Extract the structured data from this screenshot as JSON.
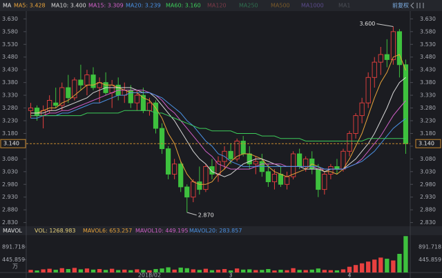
{
  "chart_data": {
    "type": "candlestick",
    "indicator": "MA",
    "adjustment": "前复权",
    "ma_legend": [
      {
        "label": "MA5: 3.428",
        "color": "#e8a33a"
      },
      {
        "label": "MA10: 3.400",
        "color": "#d8d8d8"
      },
      {
        "label": "MA15: 3.309",
        "color": "#d060c8"
      },
      {
        "label": "MA20: 3.239",
        "color": "#4a90e2"
      },
      {
        "label": "MA60: 3.160",
        "color": "#3dcc5a"
      },
      {
        "label": "MA120",
        "color": "#7a3a48"
      },
      {
        "label": "MA250",
        "color": "#2f6e4f"
      },
      {
        "label": "MA500",
        "color": "#7a5a2a"
      },
      {
        "label": "MA1000",
        "color": "#5a4a8a"
      },
      {
        "label": "MA1",
        "color": "#4a4d55"
      }
    ],
    "categories": [
      null,
      null,
      null,
      null,
      null,
      null,
      null,
      null,
      null,
      null,
      null,
      null,
      null,
      null,
      null,
      null,
      null,
      null,
      null,
      "2018/02",
      null,
      null,
      null,
      null,
      null,
      null,
      null,
      null,
      null,
      null,
      null,
      null,
      "3",
      null,
      null,
      null,
      null,
      null,
      null,
      null,
      null,
      null,
      null,
      null,
      null,
      null,
      null,
      null,
      null,
      null,
      null,
      "4",
      null,
      null,
      null,
      null,
      null,
      null,
      null,
      null,
      null
    ],
    "open": [
      3.27,
      3.28,
      3.25,
      3.27,
      3.3,
      3.29,
      3.36,
      3.32,
      3.39,
      3.37,
      3.41,
      3.36,
      3.38,
      3.34,
      3.37,
      3.33,
      3.35,
      3.3,
      3.33,
      3.27,
      3.3,
      3.2,
      3.12,
      3.02,
      3.06,
      2.97,
      2.93,
      2.99,
      2.96,
      3.05,
      3.02,
      3.07,
      3.11,
      3.08,
      3.15,
      3.1,
      3.06,
      3.07,
      3.03,
      2.99,
      3.02,
      2.98,
      3.01,
      3.1,
      3.05,
      3.08,
      3.04,
      2.96,
      3.02,
      3.05,
      3.04,
      3.11,
      3.18,
      3.25,
      3.3,
      3.4,
      3.46,
      3.49,
      3.47,
      3.58,
      3.45
    ],
    "high": [
      3.3,
      3.29,
      3.29,
      3.33,
      3.36,
      3.38,
      3.41,
      3.4,
      3.45,
      3.43,
      3.44,
      3.4,
      3.42,
      3.39,
      3.4,
      3.38,
      3.37,
      3.35,
      3.36,
      3.32,
      3.31,
      3.22,
      3.13,
      3.08,
      3.07,
      2.98,
      3.0,
      3.05,
      3.06,
      3.08,
      3.09,
      3.13,
      3.14,
      3.16,
      3.17,
      3.13,
      3.09,
      3.1,
      3.06,
      3.04,
      3.05,
      3.03,
      3.11,
      3.12,
      3.09,
      3.11,
      3.06,
      3.03,
      3.06,
      3.08,
      3.12,
      3.19,
      3.26,
      3.32,
      3.42,
      3.48,
      3.52,
      3.55,
      3.6,
      3.59,
      3.47
    ],
    "low": [
      3.24,
      3.23,
      3.2,
      3.26,
      3.28,
      3.27,
      3.3,
      3.31,
      3.35,
      3.33,
      3.35,
      3.3,
      3.33,
      3.28,
      3.31,
      3.3,
      3.28,
      3.27,
      3.26,
      3.25,
      3.18,
      3.1,
      3.0,
      3.0,
      2.95,
      2.87,
      2.91,
      2.94,
      2.95,
      3.0,
      2.99,
      3.04,
      3.06,
      3.07,
      3.09,
      3.04,
      3.02,
      3.01,
      2.97,
      2.96,
      2.97,
      2.96,
      3.0,
      3.04,
      3.03,
      3.02,
      2.93,
      2.94,
      3.0,
      3.02,
      3.03,
      3.09,
      3.16,
      3.22,
      3.28,
      3.36,
      3.41,
      3.44,
      3.45,
      3.4,
      3.1
    ],
    "close": [
      3.28,
      3.25,
      3.27,
      3.31,
      3.29,
      3.36,
      3.32,
      3.39,
      3.37,
      3.41,
      3.36,
      3.38,
      3.34,
      3.37,
      3.33,
      3.35,
      3.3,
      3.33,
      3.27,
      3.3,
      3.2,
      3.12,
      3.02,
      3.06,
      2.97,
      2.93,
      2.99,
      2.96,
      3.05,
      3.02,
      3.07,
      3.11,
      3.08,
      3.15,
      3.1,
      3.06,
      3.07,
      3.03,
      2.99,
      3.02,
      2.98,
      3.01,
      3.1,
      3.05,
      3.08,
      3.04,
      2.96,
      3.02,
      3.05,
      3.04,
      3.11,
      3.18,
      3.25,
      3.3,
      3.4,
      3.46,
      3.49,
      3.47,
      3.58,
      3.45,
      3.14
    ],
    "ma_series": [
      {
        "name": "MA5",
        "color": "#e8a33a",
        "values": [
          3.26,
          3.26,
          3.27,
          3.28,
          3.28,
          3.3,
          3.31,
          3.33,
          3.35,
          3.37,
          3.37,
          3.38,
          3.37,
          3.37,
          3.36,
          3.35,
          3.34,
          3.34,
          3.32,
          3.31,
          3.28,
          3.24,
          3.18,
          3.14,
          3.07,
          3.02,
          2.99,
          2.98,
          2.98,
          2.99,
          3.02,
          3.04,
          3.07,
          3.09,
          3.1,
          3.1,
          3.09,
          3.08,
          3.05,
          3.03,
          3.02,
          3.01,
          3.02,
          3.03,
          3.04,
          3.06,
          3.05,
          3.03,
          3.03,
          3.02,
          3.04,
          3.08,
          3.13,
          3.18,
          3.25,
          3.32,
          3.38,
          3.42,
          3.48,
          3.49,
          3.428
        ]
      },
      {
        "name": "MA10",
        "color": "#d8d8d8",
        "values": [
          3.26,
          3.26,
          3.26,
          3.27,
          3.27,
          3.28,
          3.29,
          3.3,
          3.31,
          3.32,
          3.34,
          3.35,
          3.36,
          3.36,
          3.36,
          3.36,
          3.36,
          3.35,
          3.34,
          3.34,
          3.32,
          3.29,
          3.26,
          3.23,
          3.19,
          3.15,
          3.11,
          3.08,
          3.06,
          3.03,
          3.02,
          3.01,
          3.02,
          3.04,
          3.06,
          3.07,
          3.08,
          3.08,
          3.07,
          3.06,
          3.05,
          3.05,
          3.05,
          3.05,
          3.04,
          3.04,
          3.04,
          3.03,
          3.04,
          3.04,
          3.04,
          3.06,
          3.08,
          3.11,
          3.14,
          3.18,
          3.23,
          3.28,
          3.34,
          3.38,
          3.4
        ]
      },
      {
        "name": "MA15",
        "color": "#d060c8",
        "values": [
          3.25,
          3.25,
          3.25,
          3.26,
          3.26,
          3.27,
          3.27,
          3.28,
          3.29,
          3.3,
          3.31,
          3.32,
          3.33,
          3.34,
          3.35,
          3.35,
          3.35,
          3.35,
          3.35,
          3.34,
          3.33,
          3.31,
          3.28,
          3.26,
          3.23,
          3.2,
          3.17,
          3.14,
          3.11,
          3.09,
          3.06,
          3.05,
          3.04,
          3.04,
          3.04,
          3.04,
          3.05,
          3.06,
          3.06,
          3.06,
          3.06,
          3.05,
          3.05,
          3.05,
          3.05,
          3.05,
          3.04,
          3.04,
          3.04,
          3.04,
          3.04,
          3.05,
          3.06,
          3.08,
          3.11,
          3.14,
          3.17,
          3.21,
          3.25,
          3.28,
          3.309
        ]
      },
      {
        "name": "MA20",
        "color": "#4a90e2",
        "values": [
          3.24,
          3.24,
          3.25,
          3.25,
          3.25,
          3.26,
          3.26,
          3.27,
          3.28,
          3.29,
          3.3,
          3.3,
          3.31,
          3.32,
          3.33,
          3.33,
          3.34,
          3.34,
          3.34,
          3.34,
          3.33,
          3.32,
          3.3,
          3.28,
          3.26,
          3.23,
          3.21,
          3.18,
          3.15,
          3.13,
          3.1,
          3.09,
          3.07,
          3.06,
          3.05,
          3.05,
          3.05,
          3.05,
          3.05,
          3.05,
          3.05,
          3.05,
          3.05,
          3.05,
          3.05,
          3.05,
          3.05,
          3.04,
          3.04,
          3.04,
          3.04,
          3.05,
          3.06,
          3.07,
          3.09,
          3.11,
          3.14,
          3.17,
          3.2,
          3.22,
          3.239
        ]
      },
      {
        "name": "MA60",
        "color": "#3dcc5a",
        "values": [
          3.25,
          3.25,
          3.25,
          3.25,
          3.25,
          3.25,
          3.25,
          3.25,
          3.25,
          3.26,
          3.26,
          3.26,
          3.26,
          3.26,
          3.26,
          3.27,
          3.27,
          3.27,
          3.27,
          3.27,
          3.26,
          3.26,
          3.25,
          3.24,
          3.23,
          3.22,
          3.21,
          3.2,
          3.2,
          3.19,
          3.19,
          3.19,
          3.19,
          3.18,
          3.18,
          3.18,
          3.18,
          3.17,
          3.17,
          3.17,
          3.16,
          3.16,
          3.16,
          3.16,
          3.15,
          3.15,
          3.15,
          3.15,
          3.15,
          3.15,
          3.15,
          3.15,
          3.15,
          3.15,
          3.16,
          3.16,
          3.16,
          3.16,
          3.16,
          3.16,
          3.16
        ]
      }
    ],
    "up_color": "#e8403f",
    "down_color": "#3ec13e",
    "ylim": [
      2.81,
      3.65
    ],
    "yticks": [
      {
        "value": 3.63,
        "label": "3.630"
      },
      {
        "value": 3.58,
        "label": "3.580"
      },
      {
        "value": 3.53,
        "label": "3.530"
      },
      {
        "value": 3.48,
        "label": "3.480"
      },
      {
        "value": 3.43,
        "label": "3.430"
      },
      {
        "value": 3.38,
        "label": "3.380"
      },
      {
        "value": 3.33,
        "label": "3.330"
      },
      {
        "value": 3.28,
        "label": "3.280"
      },
      {
        "value": 3.23,
        "label": "3.230"
      },
      {
        "value": 3.18,
        "label": "3.180"
      },
      {
        "value": 3.13,
        "label": "3.130"
      },
      {
        "value": 3.08,
        "label": "3.080"
      },
      {
        "value": 3.03,
        "label": "3.030"
      },
      {
        "value": 2.98,
        "label": "2.980"
      },
      {
        "value": 2.93,
        "label": "2.930"
      },
      {
        "value": 2.88,
        "label": "2.880"
      },
      {
        "value": 2.83,
        "label": "2.830"
      }
    ],
    "last_price": {
      "value": 3.14,
      "label": "3.140"
    },
    "annotations": [
      {
        "value": 3.6,
        "label": "3.600"
      },
      {
        "value": 2.87,
        "label": "2.870"
      }
    ],
    "volume_legend": [
      {
        "label": "MAVOL",
        "color": "#e0e0e0"
      },
      {
        "label": "VOL: 1268.983",
        "color": "#e8d27a"
      },
      {
        "label": "MAVOL6: 653.257",
        "color": "#e8a33a"
      },
      {
        "label": "MAVOL10: 449.195",
        "color": "#d060c8"
      },
      {
        "label": "MAVOL20: 283.857",
        "color": "#4a90e2"
      }
    ],
    "volumes": [
      90,
      70,
      110,
      130,
      95,
      150,
      120,
      160,
      110,
      140,
      100,
      120,
      90,
      130,
      85,
      100,
      80,
      110,
      90,
      75,
      120,
      140,
      180,
      100,
      170,
      150,
      110,
      90,
      130,
      80,
      95,
      120,
      70,
      140,
      100,
      110,
      85,
      90,
      120,
      70,
      95,
      80,
      150,
      90,
      85,
      100,
      140,
      90,
      80,
      75,
      110,
      200,
      260,
      320,
      380,
      450,
      520,
      480,
      420,
      650,
      1268.983
    ],
    "vlim": [
      0,
      1300
    ],
    "vticks": [
      {
        "value": 891.718,
        "label": "891.718"
      },
      {
        "value": 445.859,
        "label": "445.859"
      }
    ],
    "volume_unit": "万"
  }
}
